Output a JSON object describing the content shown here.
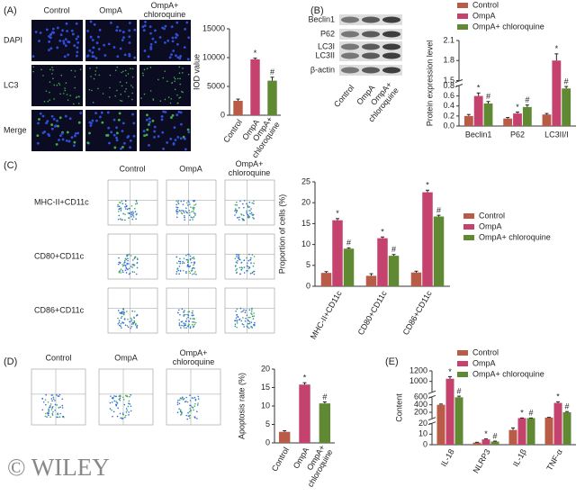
{
  "figure": {
    "panels": [
      "(A)",
      "(B)",
      "(C)",
      "(D)",
      "(E)"
    ],
    "watermark": "© WILEY",
    "a_columns": [
      "Control",
      "OmpA",
      "OmpA+\nchloroquine"
    ],
    "a_rows": [
      "DAPI",
      "LC3",
      "Merge"
    ],
    "b_bands": [
      "Beclin1",
      "P62",
      "LC3I",
      "LC3II",
      "β-actin"
    ],
    "b_lanes": [
      "Control",
      "OmpA",
      "OmpA+\nchloroquine"
    ],
    "c_columns": [
      "Control",
      "OmpA",
      "OmpA+\nchloroquine"
    ],
    "c_rows": [
      "MHC-II+CD11c",
      "CD80+CD11c",
      "CD86+CD11c"
    ],
    "d_columns": [
      "Control",
      "OmpA",
      "OmpA+\nchloroquine"
    ]
  },
  "chart_data": [
    {
      "type": "bar",
      "ylabel": "IOD value",
      "categories": [
        "Control",
        "OmpA",
        "OmpA+\nchloroquine"
      ],
      "values": [
        2500,
        9700,
        6000
      ],
      "errors": [
        300,
        200,
        600
      ],
      "colors": [
        "#b85b47",
        "#c5426e",
        "#5f8a33"
      ],
      "annotations": [
        null,
        "*",
        "#"
      ],
      "ylim": [
        0,
        15000
      ],
      "yticks": [
        0,
        5000,
        10000,
        15000
      ]
    },
    {
      "type": "bar",
      "ylabel": "Protein expression level",
      "categories": [
        "Beclin1",
        "P62",
        "LC3II/I"
      ],
      "series": [
        {
          "name": "Control",
          "color": "#b85b47",
          "values": [
            0.2,
            0.15,
            0.23
          ],
          "errors": [
            0.03,
            0.02,
            0.02
          ]
        },
        {
          "name": "OmpA",
          "color": "#c5426e",
          "values": [
            0.6,
            0.25,
            1.8
          ],
          "errors": [
            0.06,
            0.03,
            0.1
          ],
          "annotations": [
            "*",
            "*",
            "*"
          ]
        },
        {
          "name": "OmpA+ chloroquine",
          "color": "#5f8a33",
          "values": [
            0.45,
            0.38,
            0.75
          ],
          "errors": [
            0.04,
            0.04,
            0.04
          ],
          "annotations": [
            "#",
            "#",
            "#"
          ]
        }
      ],
      "ylim": [
        0,
        2.1
      ],
      "ysegments": [
        [
          0,
          0.8
        ],
        [
          1.5,
          2.1
        ]
      ],
      "yticks": [
        {
          "value": 0,
          "label": "0.0"
        },
        0.2,
        0.4,
        0.6,
        0.8,
        1.5,
        1.8,
        2.1
      ]
    },
    {
      "type": "bar",
      "ylabel": "Proportion of  cells (%)",
      "categories": [
        "MHC-II+CD11c",
        "CD80+CD11c",
        "CD86+CD11c"
      ],
      "series": [
        {
          "name": "Control",
          "color": "#b85b47",
          "values": [
            3.2,
            2.5,
            3.3
          ],
          "errors": [
            0.3,
            0.5,
            0.3
          ]
        },
        {
          "name": "OmpA",
          "color": "#c5426e",
          "values": [
            15.8,
            11.5,
            22.5
          ],
          "errors": [
            0.4,
            0.3,
            0.5
          ],
          "annotations": [
            "*",
            "*",
            "*"
          ]
        },
        {
          "name": "OmpA+ chloroquine",
          "color": "#5f8a33",
          "values": [
            9,
            7.3,
            16.7
          ],
          "errors": [
            0.2,
            0.3,
            0.3
          ],
          "annotations": [
            "#",
            "#",
            "#"
          ]
        }
      ],
      "ylim": [
        0,
        25
      ],
      "yticks": [
        0,
        5,
        10,
        15,
        20,
        25
      ]
    },
    {
      "type": "bar",
      "ylabel": "Apoptosis rate (%)",
      "categories": [
        "Control",
        "OmpA",
        "OmpA+\nchloroquine"
      ],
      "values": [
        3,
        15.8,
        10.7
      ],
      "errors": [
        0.3,
        0.5,
        0.4
      ],
      "colors": [
        "#b85b47",
        "#c5426e",
        "#5f8a33"
      ],
      "annotations": [
        null,
        "*",
        "#"
      ],
      "ylim": [
        0,
        20
      ],
      "yticks": [
        0,
        5,
        10,
        15,
        20
      ]
    },
    {
      "type": "bar",
      "ylabel": "Content",
      "categories": [
        "IL-18",
        "NLRP3",
        "IL-1β",
        "TNF-α"
      ],
      "series": [
        {
          "name": "Control",
          "color": "#b85b47",
          "values": [
            400,
            2,
            14,
            60
          ],
          "errors": [
            20,
            0.3,
            2,
            5
          ]
        },
        {
          "name": "OmpA",
          "color": "#c5426e",
          "values": [
            1050,
            5,
            45,
            450
          ],
          "errors": [
            40,
            0.5,
            3,
            30
          ],
          "annotations": [
            "*",
            "*",
            "*",
            "*"
          ]
        },
        {
          "name": "OmpA+ chloroquine",
          "color": "#5f8a33",
          "values": [
            600,
            3,
            45,
            200
          ],
          "errors": [
            30,
            0.4,
            3,
            20
          ],
          "annotations": [
            "#",
            "#",
            "#",
            "#"
          ]
        }
      ],
      "ylim": [
        0,
        1200
      ],
      "ysegments": [
        [
          0,
          20
        ],
        [
          40,
          600
        ],
        [
          800,
          1200
        ]
      ],
      "yticks": [
        0,
        10,
        20,
        200,
        400,
        600,
        1000,
        1200
      ]
    }
  ]
}
